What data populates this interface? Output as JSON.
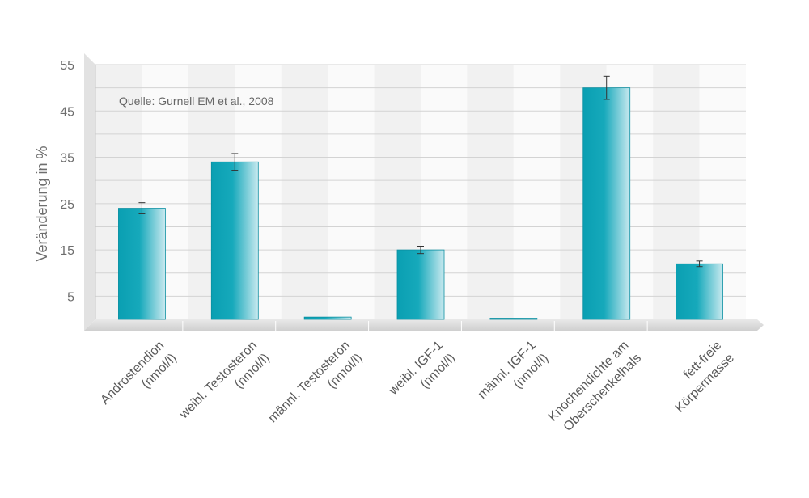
{
  "chart_data": {
    "type": "bar",
    "title": "",
    "ylabel": "Veränderung in %",
    "xlabel": "",
    "ylim": [
      0,
      55
    ],
    "yticks": [
      5,
      15,
      25,
      35,
      45,
      55
    ],
    "grid": true,
    "legend": "none",
    "annotation": "Quelle: Gurnell EM et al., 2008",
    "bar_color": "#0aa3b6",
    "categories": [
      [
        "Androstendion",
        "(nmol/l)"
      ],
      [
        "weibl. Testosteron",
        "(nmol/l)"
      ],
      [
        "männl. Testosteron",
        "(nmol/l)"
      ],
      [
        "weibl. IGF-1",
        "(nmol/l)"
      ],
      [
        "männl. IGF-1",
        "(nmol/l)"
      ],
      [
        "Knochendichte am",
        "Oberschenkelhals"
      ],
      [
        "fett-freie",
        "Körpermasse"
      ]
    ],
    "values": [
      24,
      34,
      0.5,
      15,
      0.2,
      50,
      12
    ],
    "errors": [
      1.2,
      1.8,
      0,
      0.8,
      0,
      2.5,
      0.6
    ]
  }
}
